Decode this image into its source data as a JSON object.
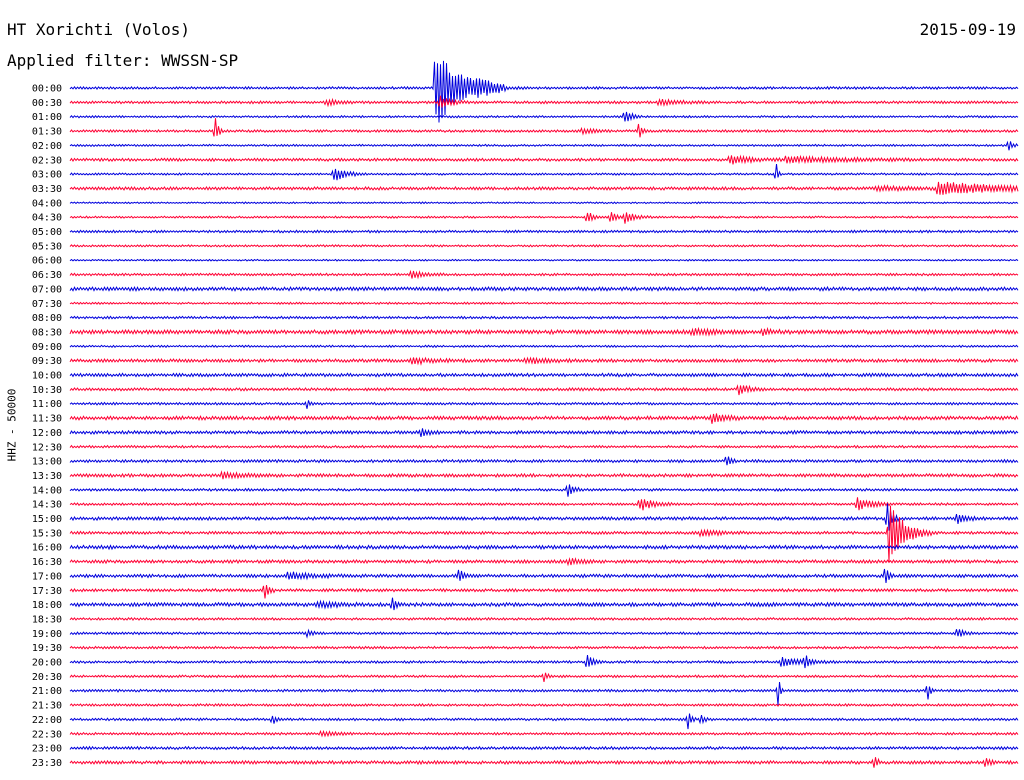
{
  "header": {
    "station": "HT Xorichti (Volos)",
    "date": "2015-09-19",
    "filter": "Applied filter: WWSSN-SP"
  },
  "chart_data": {
    "type": "line",
    "title": "HT Xorichti (Volos)",
    "subtitle": "Applied filter: WWSSN-SP",
    "ylabel": "HHZ - 50000",
    "xlabel": "",
    "grid": false,
    "legend": "none",
    "colors": {
      "even_rows": "#0000dd",
      "odd_rows": "#ff0033"
    },
    "rows": [
      "00:00",
      "00:30",
      "01:00",
      "01:30",
      "02:00",
      "02:30",
      "03:00",
      "03:30",
      "04:00",
      "04:30",
      "05:00",
      "05:30",
      "06:00",
      "06:30",
      "07:00",
      "07:30",
      "08:00",
      "08:30",
      "09:00",
      "09:30",
      "10:00",
      "10:30",
      "11:00",
      "11:30",
      "12:00",
      "12:30",
      "13:00",
      "13:30",
      "14:00",
      "14:30",
      "15:00",
      "15:30",
      "16:00",
      "16:30",
      "17:00",
      "17:30",
      "18:00",
      "18:30",
      "19:00",
      "19:30",
      "20:00",
      "20:30",
      "21:00",
      "21:30",
      "22:00",
      "22:30",
      "23:00",
      "23:30"
    ],
    "row_noise": [
      1.2,
      1.3,
      1.0,
      1.2,
      1.0,
      1.4,
      1.0,
      1.5,
      0.8,
      1.0,
      1.2,
      1.0,
      0.8,
      1.2,
      1.8,
      1.0,
      1.2,
      2.0,
      1.0,
      1.6,
      1.6,
      1.4,
      1.2,
      1.8,
      1.6,
      1.2,
      1.4,
      1.6,
      1.2,
      1.2,
      1.6,
      1.4,
      1.8,
      1.6,
      1.6,
      1.4,
      1.8,
      1.2,
      1.2,
      1.2,
      1.2,
      1.2,
      1.2,
      1.2,
      1.2,
      1.2,
      1.4,
      1.6
    ],
    "events": [
      {
        "row": 0,
        "x": 0.385,
        "amp": 44,
        "dur": 0.025
      },
      {
        "row": 0,
        "x": 0.43,
        "amp": 4,
        "dur": 0.02
      },
      {
        "row": 1,
        "x": 0.39,
        "amp": 7,
        "dur": 0.01
      },
      {
        "row": 1,
        "x": 0.27,
        "amp": 3,
        "dur": 0.01
      },
      {
        "row": 1,
        "x": 0.62,
        "amp": 3,
        "dur": 0.02
      },
      {
        "row": 2,
        "x": 0.585,
        "amp": 8,
        "dur": 0.006
      },
      {
        "row": 3,
        "x": 0.153,
        "amp": 14,
        "dur": 0.003
      },
      {
        "row": 3,
        "x": 0.6,
        "amp": 8,
        "dur": 0.004
      },
      {
        "row": 3,
        "x": 0.54,
        "amp": 3,
        "dur": 0.01
      },
      {
        "row": 4,
        "x": 0.99,
        "amp": 8,
        "dur": 0.003
      },
      {
        "row": 5,
        "x": 0.695,
        "amp": 5,
        "dur": 0.02
      },
      {
        "row": 5,
        "x": 0.755,
        "amp": 3,
        "dur": 0.06
      },
      {
        "row": 6,
        "x": 0.278,
        "amp": 8,
        "dur": 0.012
      },
      {
        "row": 6,
        "x": 0.745,
        "amp": 12,
        "dur": 0.002
      },
      {
        "row": 7,
        "x": 0.915,
        "amp": 7,
        "dur": 0.06
      },
      {
        "row": 7,
        "x": 0.85,
        "amp": 2,
        "dur": 0.04
      },
      {
        "row": 9,
        "x": 0.545,
        "amp": 7,
        "dur": 0.006
      },
      {
        "row": 9,
        "x": 0.57,
        "amp": 7,
        "dur": 0.006
      },
      {
        "row": 9,
        "x": 0.585,
        "amp": 6,
        "dur": 0.01
      },
      {
        "row": 13,
        "x": 0.36,
        "amp": 4,
        "dur": 0.012
      },
      {
        "row": 17,
        "x": 0.655,
        "amp": 3,
        "dur": 0.02
      },
      {
        "row": 17,
        "x": 0.73,
        "amp": 3,
        "dur": 0.01
      },
      {
        "row": 19,
        "x": 0.36,
        "amp": 3,
        "dur": 0.02
      },
      {
        "row": 19,
        "x": 0.48,
        "amp": 3,
        "dur": 0.02
      },
      {
        "row": 21,
        "x": 0.705,
        "amp": 6,
        "dur": 0.01
      },
      {
        "row": 22,
        "x": 0.25,
        "amp": 5,
        "dur": 0.003
      },
      {
        "row": 23,
        "x": 0.677,
        "amp": 6,
        "dur": 0.012
      },
      {
        "row": 24,
        "x": 0.37,
        "amp": 4,
        "dur": 0.008
      },
      {
        "row": 26,
        "x": 0.692,
        "amp": 7,
        "dur": 0.004
      },
      {
        "row": 27,
        "x": 0.16,
        "amp": 3,
        "dur": 0.02
      },
      {
        "row": 28,
        "x": 0.525,
        "amp": 7,
        "dur": 0.006
      },
      {
        "row": 29,
        "x": 0.6,
        "amp": 7,
        "dur": 0.014
      },
      {
        "row": 29,
        "x": 0.83,
        "amp": 7,
        "dur": 0.014
      },
      {
        "row": 30,
        "x": 0.935,
        "amp": 5,
        "dur": 0.01
      },
      {
        "row": 30,
        "x": 0.862,
        "amp": 22,
        "dur": 0.004
      },
      {
        "row": 31,
        "x": 0.864,
        "amp": 32,
        "dur": 0.015
      },
      {
        "row": 31,
        "x": 0.665,
        "amp": 3,
        "dur": 0.02
      },
      {
        "row": 33,
        "x": 0.525,
        "amp": 4,
        "dur": 0.01
      },
      {
        "row": 34,
        "x": 0.41,
        "amp": 9,
        "dur": 0.004
      },
      {
        "row": 34,
        "x": 0.23,
        "amp": 4,
        "dur": 0.02
      },
      {
        "row": 34,
        "x": 0.86,
        "amp": 14,
        "dur": 0.003
      },
      {
        "row": 35,
        "x": 0.205,
        "amp": 10,
        "dur": 0.004
      },
      {
        "row": 36,
        "x": 0.34,
        "amp": 9,
        "dur": 0.003
      },
      {
        "row": 36,
        "x": 0.26,
        "amp": 3,
        "dur": 0.02
      },
      {
        "row": 38,
        "x": 0.935,
        "amp": 5,
        "dur": 0.008
      },
      {
        "row": 38,
        "x": 0.25,
        "amp": 3,
        "dur": 0.006
      },
      {
        "row": 40,
        "x": 0.545,
        "amp": 8,
        "dur": 0.006
      },
      {
        "row": 40,
        "x": 0.75,
        "amp": 5,
        "dur": 0.02
      },
      {
        "row": 40,
        "x": 0.775,
        "amp": 8,
        "dur": 0.004
      },
      {
        "row": 41,
        "x": 0.5,
        "amp": 5,
        "dur": 0.004
      },
      {
        "row": 42,
        "x": 0.747,
        "amp": 18,
        "dur": 0.002
      },
      {
        "row": 42,
        "x": 0.905,
        "amp": 16,
        "dur": 0.002
      },
      {
        "row": 44,
        "x": 0.652,
        "amp": 12,
        "dur": 0.003
      },
      {
        "row": 44,
        "x": 0.213,
        "amp": 6,
        "dur": 0.004
      },
      {
        "row": 44,
        "x": 0.665,
        "amp": 5,
        "dur": 0.004
      },
      {
        "row": 45,
        "x": 0.265,
        "amp": 3,
        "dur": 0.012
      },
      {
        "row": 47,
        "x": 0.965,
        "amp": 6,
        "dur": 0.004
      },
      {
        "row": 47,
        "x": 0.848,
        "amp": 8,
        "dur": 0.003
      }
    ]
  }
}
